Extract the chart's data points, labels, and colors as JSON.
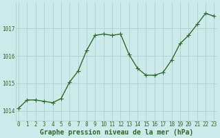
{
  "x": [
    0,
    1,
    2,
    3,
    4,
    5,
    6,
    7,
    8,
    9,
    10,
    11,
    12,
    13,
    14,
    15,
    16,
    17,
    18,
    19,
    20,
    21,
    22,
    23
  ],
  "y": [
    1014.1,
    1014.4,
    1014.4,
    1014.35,
    1014.3,
    1014.45,
    1015.05,
    1015.45,
    1016.2,
    1016.75,
    1016.8,
    1016.75,
    1016.8,
    1016.05,
    1015.55,
    1015.3,
    1015.3,
    1015.4,
    1015.85,
    1016.45,
    1016.75,
    1017.15,
    1017.55,
    1017.45
  ],
  "line_color": "#2d6a2d",
  "marker_color": "#2d6a2d",
  "bg_color": "#cceaea",
  "grid_color": "#aacccc",
  "xlabel": "Graphe pression niveau de la mer (hPa)",
  "xlabel_fontsize": 7,
  "yticks": [
    1014,
    1015,
    1016,
    1017
  ],
  "xticks": [
    0,
    1,
    2,
    3,
    4,
    5,
    6,
    7,
    8,
    9,
    10,
    11,
    12,
    13,
    14,
    15,
    16,
    17,
    18,
    19,
    20,
    21,
    22,
    23
  ],
  "ylim": [
    1013.65,
    1017.95
  ],
  "xlim": [
    -0.3,
    23.3
  ],
  "tick_fontsize": 5.5,
  "linewidth": 1.0,
  "markersize": 2.2
}
